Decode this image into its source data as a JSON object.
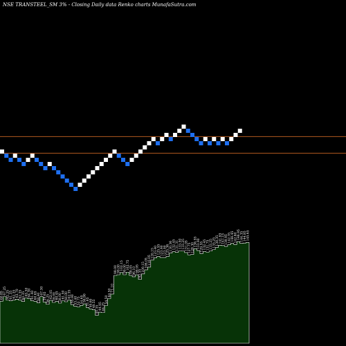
{
  "header": {
    "title": "NSE TRANSTEEL_SM 3% -  Closing Daily data  Renko  charts MunafaSutra.com"
  },
  "colors": {
    "background": "#000000",
    "up_brick": "#ffffff",
    "down_brick": "#1e6ff0",
    "reference_line": "#b35a1f",
    "volume_fill": "#073307",
    "volume_stroke": "#ffffff",
    "label": "#ffffff"
  },
  "chart_data": [
    {
      "type": "renko",
      "brick_size_pct": 3,
      "bricks": [
        {
          "dir": "up",
          "level": 11
        },
        {
          "dir": "down",
          "level": 10
        },
        {
          "dir": "down",
          "level": 9
        },
        {
          "dir": "up",
          "level": 10
        },
        {
          "dir": "down",
          "level": 9
        },
        {
          "dir": "down",
          "level": 8
        },
        {
          "dir": "up",
          "level": 9
        },
        {
          "dir": "up",
          "level": 10
        },
        {
          "dir": "down",
          "level": 9
        },
        {
          "dir": "down",
          "level": 8
        },
        {
          "dir": "down",
          "level": 7
        },
        {
          "dir": "up",
          "level": 8
        },
        {
          "dir": "down",
          "level": 7
        },
        {
          "dir": "down",
          "level": 6
        },
        {
          "dir": "down",
          "level": 5
        },
        {
          "dir": "down",
          "level": 4
        },
        {
          "dir": "down",
          "level": 3
        },
        {
          "dir": "down",
          "level": 2
        },
        {
          "dir": "up",
          "level": 3
        },
        {
          "dir": "up",
          "level": 4
        },
        {
          "dir": "up",
          "level": 5
        },
        {
          "dir": "up",
          "level": 6
        },
        {
          "dir": "up",
          "level": 7
        },
        {
          "dir": "up",
          "level": 8
        },
        {
          "dir": "up",
          "level": 9
        },
        {
          "dir": "up",
          "level": 10
        },
        {
          "dir": "up",
          "level": 11
        },
        {
          "dir": "down",
          "level": 10
        },
        {
          "dir": "down",
          "level": 9
        },
        {
          "dir": "down",
          "level": 8
        },
        {
          "dir": "up",
          "level": 9
        },
        {
          "dir": "up",
          "level": 10
        },
        {
          "dir": "up",
          "level": 11
        },
        {
          "dir": "up",
          "level": 12
        },
        {
          "dir": "up",
          "level": 13
        },
        {
          "dir": "up",
          "level": 14
        },
        {
          "dir": "down",
          "level": 13
        },
        {
          "dir": "up",
          "level": 14
        },
        {
          "dir": "up",
          "level": 15
        },
        {
          "dir": "down",
          "level": 14
        },
        {
          "dir": "up",
          "level": 15
        },
        {
          "dir": "up",
          "level": 16
        },
        {
          "dir": "up",
          "level": 17
        },
        {
          "dir": "down",
          "level": 16
        },
        {
          "dir": "down",
          "level": 15
        },
        {
          "dir": "down",
          "level": 14
        },
        {
          "dir": "down",
          "level": 13
        },
        {
          "dir": "up",
          "level": 14
        },
        {
          "dir": "down",
          "level": 13
        },
        {
          "dir": "up",
          "level": 14
        },
        {
          "dir": "down",
          "level": 13
        },
        {
          "dir": "up",
          "level": 14
        },
        {
          "dir": "down",
          "level": 13
        },
        {
          "dir": "up",
          "level": 14
        },
        {
          "dir": "up",
          "level": 15
        },
        {
          "dir": "up",
          "level": 16
        }
      ],
      "reference_lines": [
        {
          "level": 14.6
        },
        {
          "level": 10.6
        }
      ]
    },
    {
      "type": "area",
      "labels": [
        "60.85",
        "67.25",
        "62.25",
        "61.35",
        "62.35",
        "63.70",
        "62.35",
        "60.35",
        "65.50",
        "64.30",
        "61.40",
        "60.65",
        "58.40",
        "67.30",
        "59.65",
        "56.25",
        "62.05",
        "59.00",
        "60.45",
        "58.00",
        "61.50",
        "60.00",
        "62.35",
        "55.90",
        "53.40",
        "52.75",
        "54.65",
        "56.90",
        "51.65",
        "49.60",
        "48.55",
        "40.35",
        "44.95",
        "44.25",
        "54.50",
        "64.50",
        "71.10",
        "98.00",
        "99.00",
        "102.15",
        "99.00",
        "102.75",
        "98.05",
        "96.10",
        "98.95",
        "92.35",
        "100.15",
        "106.05",
        "110.05",
        "120.15",
        "123.40",
        "125.55",
        "123.90",
        "123.90",
        "125.36",
        "130.36",
        "132.45",
        "131.31",
        "133.50",
        "133.25",
        "131.05",
        "127.75",
        "128.30",
        "136.55",
        "133.90",
        "129.55",
        "132.45",
        "131.75",
        "133.25",
        "135.25",
        "138.35",
        "141.65",
        "141.15",
        "139.95",
        "142.35",
        "144.45",
        "142.60",
        "146.95",
        "144.35",
        "144.85",
        "145.65"
      ],
      "values": [
        60.85,
        67.25,
        62.25,
        61.35,
        62.35,
        63.7,
        62.35,
        60.35,
        65.5,
        64.3,
        61.4,
        60.65,
        58.4,
        67.3,
        59.65,
        56.25,
        62.05,
        59.0,
        60.45,
        58.0,
        61.5,
        60.0,
        62.35,
        55.9,
        53.4,
        52.75,
        54.65,
        56.9,
        51.65,
        49.6,
        48.55,
        40.35,
        44.95,
        44.25,
        54.5,
        64.5,
        71.1,
        98.0,
        99.0,
        102.15,
        99.0,
        102.75,
        98.05,
        96.1,
        98.95,
        92.35,
        100.15,
        106.05,
        110.05,
        120.15,
        123.4,
        125.55,
        123.9,
        123.9,
        125.36,
        130.36,
        132.45,
        131.31,
        133.5,
        133.25,
        131.05,
        127.75,
        128.3,
        136.55,
        133.9,
        129.55,
        132.45,
        131.75,
        133.25,
        135.25,
        138.35,
        141.65,
        141.15,
        139.95,
        142.35,
        144.45,
        142.6,
        146.95,
        144.35,
        144.85,
        145.65
      ],
      "ylim": [
        0,
        160
      ]
    }
  ]
}
